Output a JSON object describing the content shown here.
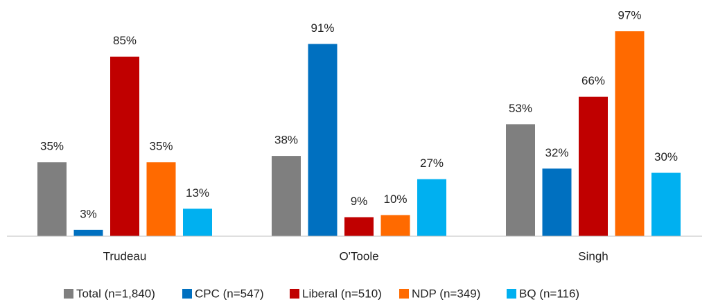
{
  "chart_data": {
    "type": "bar",
    "categories": [
      "Trudeau",
      "O'Toole",
      "Singh"
    ],
    "series": [
      {
        "name": "Total (n=1,840)",
        "color": "#7f7f7f",
        "values": [
          35,
          38,
          53
        ],
        "value_labels": [
          "35%",
          "38%",
          "53%"
        ]
      },
      {
        "name": "CPC (n=547)",
        "color": "#0070c0",
        "values": [
          3,
          91,
          32
        ],
        "value_labels": [
          "3%",
          "91%",
          "32%"
        ]
      },
      {
        "name": "Liberal (n=510)",
        "color": "#c00000",
        "values": [
          85,
          9,
          66
        ],
        "value_labels": [
          "85%",
          "9%",
          "66%"
        ]
      },
      {
        "name": "NDP (n=349)",
        "color": "#ff6a00",
        "values": [
          35,
          10,
          97
        ],
        "value_labels": [
          "35%",
          "10%",
          "97%"
        ]
      },
      {
        "name": "BQ (n=116)",
        "color": "#00b0f0",
        "values": [
          13,
          27,
          30
        ],
        "value_labels": [
          "13%",
          "27%",
          "30%"
        ]
      }
    ]
  }
}
